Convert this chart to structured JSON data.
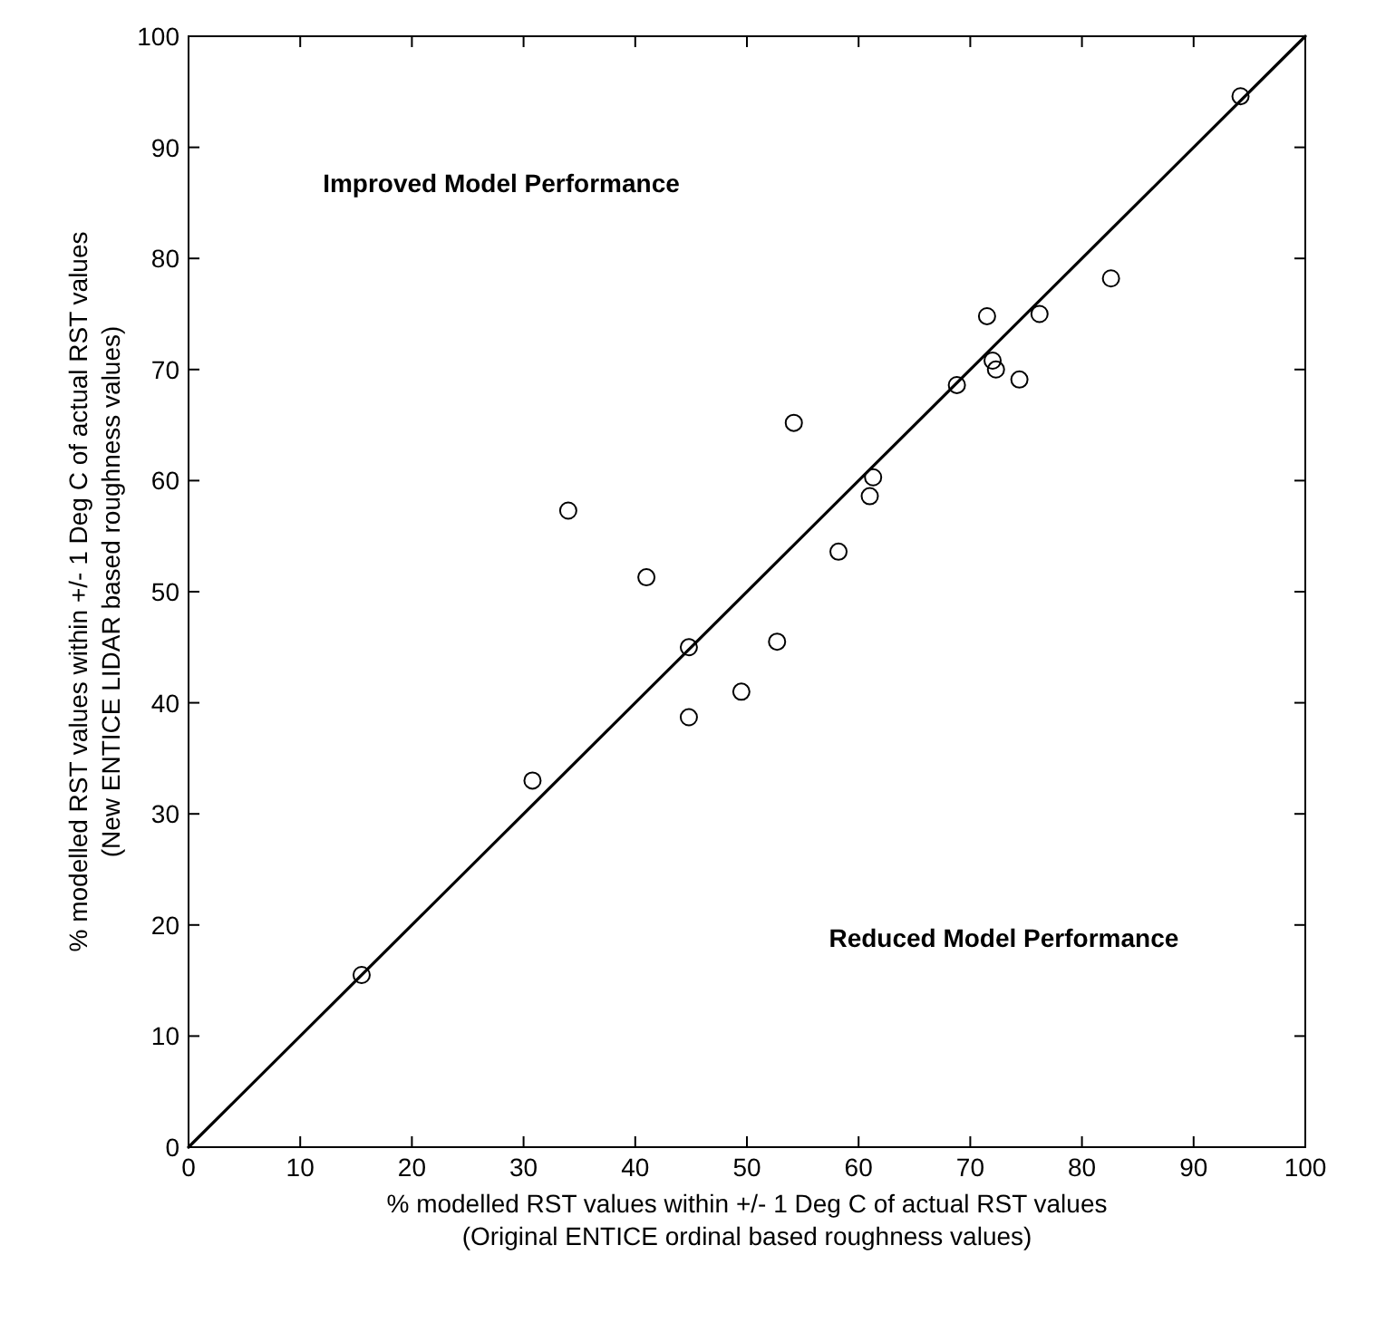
{
  "chart_data": {
    "type": "scatter",
    "xlabel": "% modelled RST values within +/- 1 Deg C of actual RST values\n(Original ENTICE ordinal based roughness values)",
    "ylabel": "% modelled RST values within +/- 1 Deg C of actual RST values\n(New ENTICE LIDAR based roughness values)",
    "xlim": [
      0,
      100
    ],
    "ylim": [
      0,
      100
    ],
    "xticks": [
      0,
      10,
      20,
      30,
      40,
      50,
      60,
      70,
      80,
      90,
      100
    ],
    "yticks": [
      0,
      10,
      20,
      30,
      40,
      50,
      60,
      70,
      80,
      90,
      100
    ],
    "grid": false,
    "annotations": [
      "Improved Model Performance",
      "Reduced Model Performance"
    ],
    "series": [
      {
        "marker": "circle",
        "color": "#000000",
        "x": [
          15.5,
          30.8,
          34,
          41,
          44.8,
          44.8,
          49.5,
          52.7,
          54.2,
          58.2,
          61,
          61.3,
          68.8,
          71.5,
          72,
          72.3,
          74.4,
          76.2,
          82.6,
          94.2
        ],
        "values": [
          15.5,
          33,
          57.3,
          51.3,
          45,
          38.7,
          41,
          45.5,
          65.2,
          53.6,
          58.6,
          60.3,
          68.6,
          74.8,
          70.8,
          70,
          69.1,
          75,
          78.2,
          94.6
        ]
      },
      {
        "type": "line",
        "marker": "none",
        "line_style": "solid",
        "color": "#000000",
        "x": [
          0,
          100
        ],
        "values": [
          0,
          100
        ]
      }
    ]
  }
}
